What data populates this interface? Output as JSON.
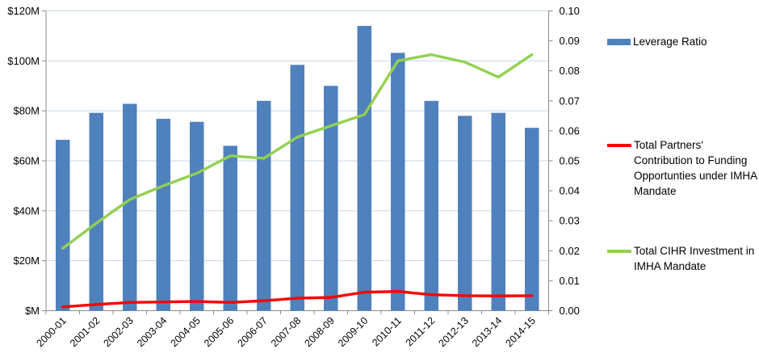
{
  "chart_data": {
    "type": "combo_bar_line",
    "title": "",
    "categories": [
      "2000-01",
      "2001-02",
      "2002-03",
      "2003-04",
      "2004-05",
      "2005-06",
      "2006-07",
      "2007-08",
      "2008-09",
      "2009-10",
      "2010-11",
      "2011-12",
      "2012-13",
      "2013-14",
      "2014-15"
    ],
    "series": [
      {
        "name": "Leverage Ratio",
        "type": "bar",
        "axis": "right",
        "color": "#4F81BD",
        "values": [
          0.057,
          0.066,
          0.069,
          0.064,
          0.063,
          0.055,
          0.07,
          0.082,
          0.075,
          0.095,
          0.086,
          0.07,
          0.065,
          0.066,
          0.061
        ]
      },
      {
        "name": "Total Partners' Contribution to Funding Opportunties under IMHA Mandate",
        "type": "line",
        "axis": "left",
        "color": "#FF0000",
        "values_musd": [
          1.5,
          2.5,
          3.3,
          3.5,
          3.7,
          3.3,
          4.0,
          5.0,
          5.3,
          7.4,
          7.7,
          6.4,
          6.0,
          5.9,
          6.0
        ]
      },
      {
        "name": "Total CIHR Investment in IMHA Mandate",
        "type": "line",
        "axis": "left",
        "color": "#92D050",
        "values_musd": [
          25,
          35,
          44.5,
          50,
          55,
          62,
          61,
          69.5,
          74,
          78.5,
          100,
          102.5,
          99.5,
          93.5,
          102.5
        ]
      }
    ],
    "left_axis": {
      "tick_labels": [
        "$M",
        "$20M",
        "$40M",
        "$60M",
        "$80M",
        "$100M",
        "$120M"
      ],
      "range_musd": [
        0,
        120
      ]
    },
    "right_axis": {
      "tick_labels": [
        "0.00",
        "0.01",
        "0.02",
        "0.03",
        "0.04",
        "0.05",
        "0.06",
        "0.07",
        "0.08",
        "0.09",
        "0.10"
      ],
      "range": [
        0,
        0.1
      ]
    },
    "gridlines": true,
    "legend_position": "right"
  },
  "colors": {
    "bar": "#4F81BD",
    "red_line": "#FF0000",
    "green_line": "#92D050",
    "gridline": "#C9D7EA",
    "axis": "#8C8C8C",
    "text": "#000000",
    "background": "#FFFFFF"
  }
}
